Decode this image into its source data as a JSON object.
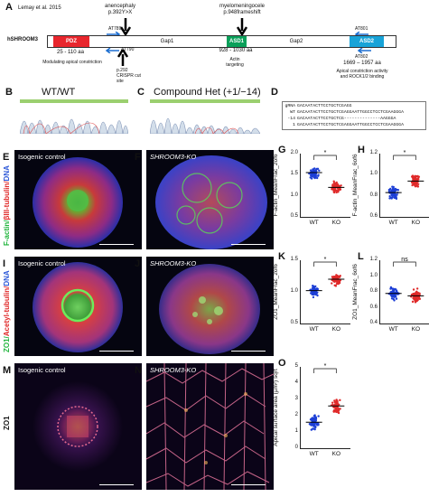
{
  "panelA": {
    "letter": "A",
    "citation": "Lemay et al. 2015",
    "gene": "hSHROOM3",
    "anencephaly": "anencephaly",
    "anencephaly_mut": "p.392Y>X",
    "mm": "myelomeningocele",
    "mm_mut": "p.948frameshift",
    "primers": [
      "AT789",
      "AT790",
      "AT801",
      "AT802"
    ],
    "domains": [
      "PDZ",
      "Gap1",
      "ASD1",
      "Gap2",
      "ASD2"
    ],
    "pdz_range": "25 - 110 aa",
    "pdz_desc": "Modulating apical constriction",
    "asd1_range": "928 - 1030 aa",
    "asd1_desc": "Actin targeting",
    "asd2_range": "1669 – 1957 aa",
    "asd2_desc": "Apical constriction activity and ROCK1/2 binding",
    "crispr": "p.292 CRISPR cut site",
    "colors": {
      "pdz": "#e8262d",
      "asd1": "#0aa05a",
      "asd2": "#18a3d8",
      "arrow": "#1d6fd1"
    }
  },
  "panelB": {
    "letter": "B",
    "title": "WT/WT"
  },
  "panelC": {
    "letter": "C",
    "title": "Compound Het (+1/−14)"
  },
  "panelD": {
    "letter": "D",
    "rows": [
      {
        "k": "gRNA",
        "s": "GACAATACTTCCTGCTCGAGG"
      },
      {
        "k": "WT",
        "s": "GACAATACTTCCTGCTCGAGGAATTGGCCTCCTCGAAGGGA"
      },
      {
        "k": "-14",
        "s": "GACAATACTTCCTGCTCG--------------AAGGGA"
      },
      {
        "k": "1",
        "s": "GACAATACTTCCTGCTCGAGGAATTGGCCTCCTCGAAGGGA"
      }
    ]
  },
  "micrographs": {
    "E": {
      "letter": "E",
      "label": "Isogenic control"
    },
    "F": {
      "letter": "F",
      "label": "SHROOM3-KO"
    },
    "I": {
      "letter": "I",
      "label": "Isogenic control"
    },
    "J": {
      "letter": "J",
      "label": "SHROOM3-KO"
    },
    "M": {
      "letter": "M",
      "label": "Isogenic control"
    },
    "N": {
      "letter": "N",
      "label": "SHROOM3-KO"
    }
  },
  "side": {
    "row1": [
      "F-actin/",
      "βIII-tubulin/",
      "DNA"
    ],
    "row2": [
      "ZO1/",
      "Acetyl-tubulin/",
      "DNA"
    ],
    "row3": "ZO1"
  },
  "plots": {
    "G": {
      "letter": "G",
      "ylabel": "F-actin_MeanFrac_2of6",
      "ticks": [
        "2.0",
        "1.5",
        "1.0",
        "0.5"
      ],
      "sig": "*",
      "xl": [
        "WT",
        "KO"
      ]
    },
    "H": {
      "letter": "H",
      "ylabel": "F-actin_MeanFrac_6of6",
      "ticks": [
        "1.2",
        "1.0",
        "0.8",
        "0.6"
      ],
      "sig": "*",
      "xl": [
        "WT",
        "KO"
      ]
    },
    "K": {
      "letter": "K",
      "ylabel": "ZO1_MeanFrac_2of6",
      "ticks": [
        "1.5",
        "1.0",
        "0.5"
      ],
      "sig": "*",
      "xl": [
        "WT",
        "KO"
      ]
    },
    "L": {
      "letter": "L",
      "ylabel": "ZO1_MeanFrac_6of6",
      "ticks": [
        "1.2",
        "1.0",
        "0.8",
        "0.6",
        "0.4"
      ],
      "sig": "ns",
      "xl": [
        "WT",
        "KO"
      ]
    },
    "O": {
      "letter": "O",
      "ylabel": "Apical surface area (µm²) sqrt",
      "ticks": [
        "5",
        "4",
        "3",
        "2",
        "1",
        "0"
      ],
      "sig": "*",
      "xl": [
        "WT",
        "KO"
      ]
    }
  },
  "chart_data": [
    {
      "type": "scatter",
      "title": "G",
      "ylabel": "F-actin_MeanFrac_2of6",
      "categories": [
        "WT",
        "KO"
      ],
      "series": [
        {
          "name": "WT",
          "values": [
            1.55
          ]
        },
        {
          "name": "KO",
          "values": [
            1.2
          ]
        }
      ],
      "ylim": [
        0.5,
        2.0
      ]
    },
    {
      "type": "scatter",
      "title": "H",
      "ylabel": "F-actin_MeanFrac_6of6",
      "categories": [
        "WT",
        "KO"
      ],
      "series": [
        {
          "name": "WT",
          "values": [
            0.83
          ]
        },
        {
          "name": "KO",
          "values": [
            0.94
          ]
        }
      ],
      "ylim": [
        0.6,
        1.2
      ]
    },
    {
      "type": "scatter",
      "title": "K",
      "ylabel": "ZO1_MeanFrac_2of6",
      "categories": [
        "WT",
        "KO"
      ],
      "series": [
        {
          "name": "WT",
          "values": [
            1.02
          ]
        },
        {
          "name": "KO",
          "values": [
            1.2
          ]
        }
      ],
      "ylim": [
        0.5,
        1.5
      ]
    },
    {
      "type": "scatter",
      "title": "L",
      "ylabel": "ZO1_MeanFrac_6of6",
      "categories": [
        "WT",
        "KO"
      ],
      "series": [
        {
          "name": "WT",
          "values": [
            0.78
          ]
        },
        {
          "name": "KO",
          "values": [
            0.75
          ]
        }
      ],
      "ylim": [
        0.4,
        1.2
      ]
    },
    {
      "type": "scatter",
      "title": "O",
      "ylabel": "Apical surface area (µm²) sqrt",
      "categories": [
        "WT",
        "KO"
      ],
      "series": [
        {
          "name": "WT",
          "values": [
            1.6
          ]
        },
        {
          "name": "KO",
          "values": [
            2.6
          ]
        }
      ],
      "ylim": [
        0,
        5
      ]
    }
  ]
}
